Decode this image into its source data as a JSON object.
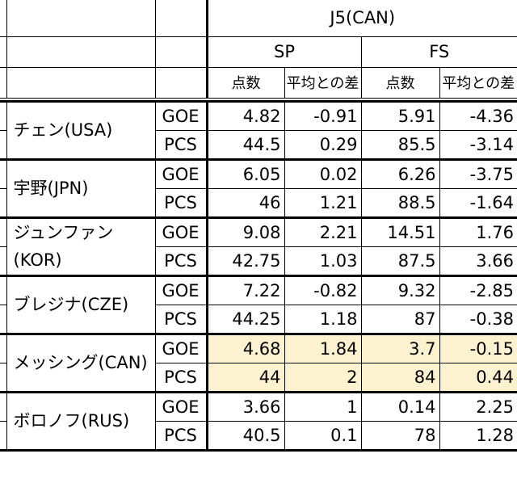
{
  "header": {
    "judge": "J5(CAN)",
    "sp": "SP",
    "fs": "FS",
    "score": "点数",
    "diff": "平均との差"
  },
  "skaters": [
    {
      "name": "チェン(USA)",
      "goe": {
        "label": "GOE",
        "sp_score": "4.82",
        "sp_diff": "-0.91",
        "fs_score": "5.91",
        "fs_diff": "-4.36"
      },
      "pcs": {
        "label": "PCS",
        "sp_score": "44.5",
        "sp_diff": "0.29",
        "fs_score": "85.5",
        "fs_diff": "-3.14"
      }
    },
    {
      "name": "宇野(JPN)",
      "goe": {
        "label": "GOE",
        "sp_score": "6.05",
        "sp_diff": "0.02",
        "fs_score": "6.26",
        "fs_diff": "-3.75"
      },
      "pcs": {
        "label": "PCS",
        "sp_score": "46",
        "sp_diff": "1.21",
        "fs_score": "88.5",
        "fs_diff": "-1.64"
      }
    },
    {
      "name": "ジュンファン(KOR)",
      "goe": {
        "label": "GOE",
        "sp_score": "9.08",
        "sp_diff": "2.21",
        "fs_score": "14.51",
        "fs_diff": "1.76"
      },
      "pcs": {
        "label": "PCS",
        "sp_score": "42.75",
        "sp_diff": "1.03",
        "fs_score": "87.5",
        "fs_diff": "3.66"
      }
    },
    {
      "name": "ブレジナ(CZE)",
      "goe": {
        "label": "GOE",
        "sp_score": "7.22",
        "sp_diff": "-0.82",
        "fs_score": "9.32",
        "fs_diff": "-2.85"
      },
      "pcs": {
        "label": "PCS",
        "sp_score": "44.25",
        "sp_diff": "1.18",
        "fs_score": "87",
        "fs_diff": "-0.38"
      }
    },
    {
      "name": "メッシング(CAN)",
      "goe": {
        "label": "GOE",
        "sp_score": "4.68",
        "sp_diff": "1.84",
        "fs_score": "3.7",
        "fs_diff": "-0.15"
      },
      "pcs": {
        "label": "PCS",
        "sp_score": "44",
        "sp_diff": "2",
        "fs_score": "84",
        "fs_diff": "0.44"
      }
    },
    {
      "name": "ボロノフ(RUS)",
      "goe": {
        "label": "GOE",
        "sp_score": "3.66",
        "sp_diff": "1",
        "fs_score": "0.14",
        "fs_diff": "2.25"
      },
      "pcs": {
        "label": "PCS",
        "sp_score": "40.5",
        "sp_diff": "0.1",
        "fs_score": "78",
        "fs_diff": "1.28"
      }
    }
  ],
  "highlight_color": "#fdf2d0"
}
